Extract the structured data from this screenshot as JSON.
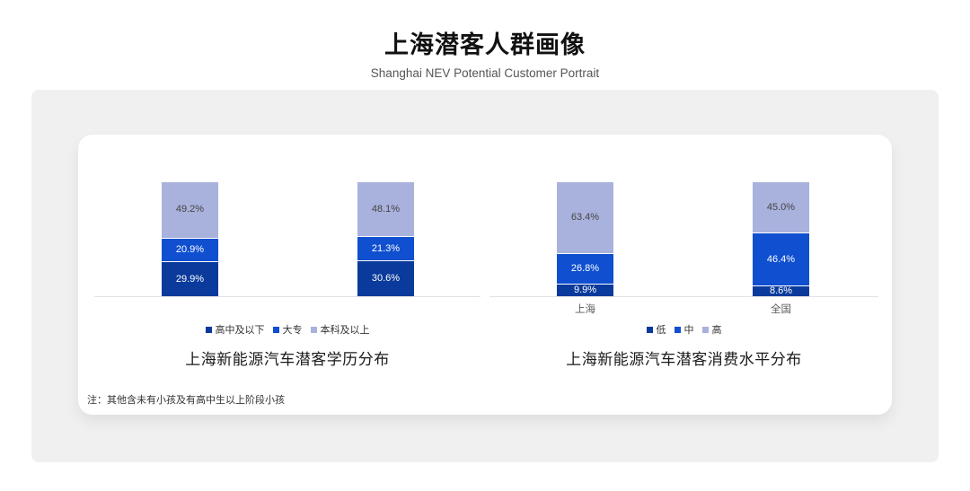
{
  "page": {
    "title": "上海潜客人群画像",
    "subtitle": "Shanghai NEV Potential Customer Portrait",
    "note": "注：其他含未有小孩及有高中生以上阶段小孩"
  },
  "colors": {
    "series_dark": "#0a3a9b",
    "series_mid": "#0f4fd0",
    "series_light": "#a9b2dc",
    "axis_line": "#e2e2e2",
    "panel_bg": "#f0f0f1",
    "card_bg": "#ffffff"
  },
  "chart_data": [
    {
      "type": "bar",
      "stacked": true,
      "percent_stacked": true,
      "title": "上海新能源汽车潜客学历分布",
      "categories": [
        "",
        ""
      ],
      "series": [
        {
          "name": "高中及以下",
          "values": [
            29.9,
            30.6
          ],
          "color": "#0a3a9b",
          "label_color": "#ffffff"
        },
        {
          "name": "大专",
          "values": [
            20.9,
            21.3
          ],
          "color": "#0f4fd0",
          "label_color": "#ffffff"
        },
        {
          "name": "本科及以上",
          "values": [
            49.2,
            48.1
          ],
          "color": "#a9b2dc",
          "label_color": "#444444"
        }
      ],
      "ylim": [
        0,
        100
      ],
      "grid": false,
      "legend_position": "bottom",
      "data_label_format": "0.0%"
    },
    {
      "type": "bar",
      "stacked": true,
      "percent_stacked": true,
      "title": "上海新能源汽车潜客消费水平分布",
      "categories": [
        "上海",
        "全国"
      ],
      "series": [
        {
          "name": "低",
          "values": [
            9.9,
            8.6
          ],
          "color": "#0a3a9b",
          "label_color": "#ffffff"
        },
        {
          "name": "中",
          "values": [
            26.8,
            46.4
          ],
          "color": "#0f4fd0",
          "label_color": "#ffffff"
        },
        {
          "name": "高",
          "values": [
            63.4,
            45.0
          ],
          "color": "#a9b2dc",
          "label_color": "#444444"
        }
      ],
      "ylim": [
        0,
        100
      ],
      "grid": false,
      "legend_position": "bottom",
      "data_label_format": "0.0%"
    }
  ]
}
